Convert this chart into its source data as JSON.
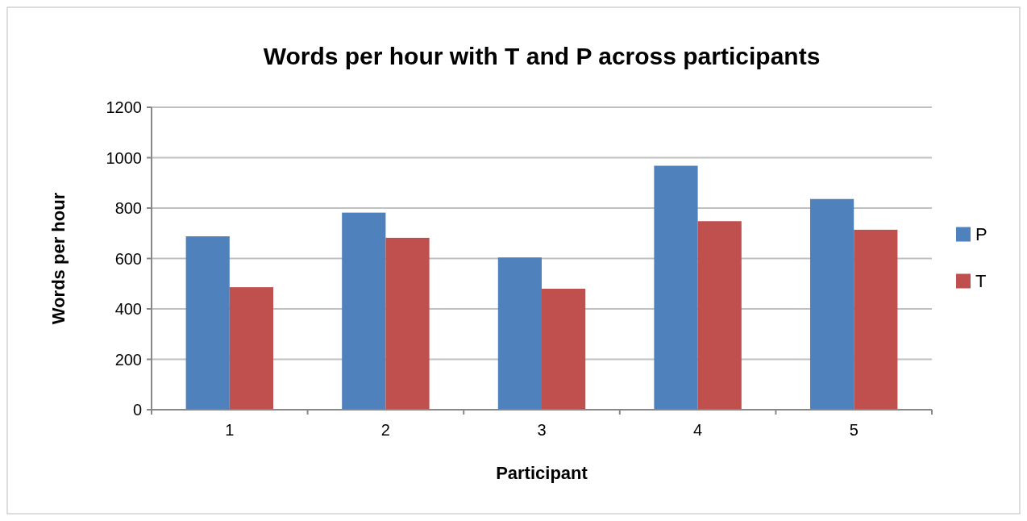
{
  "chart_data": {
    "type": "bar",
    "title": "Words per hour with T and P across participants",
    "xlabel": "Participant",
    "ylabel": "Words per hour",
    "categories": [
      "1",
      "2",
      "3",
      "4",
      "5"
    ],
    "series": [
      {
        "name": "P",
        "color": "#4f81bd",
        "values": [
          688,
          782,
          604,
          968,
          836
        ]
      },
      {
        "name": "T",
        "color": "#c0504d",
        "values": [
          486,
          682,
          480,
          748,
          714
        ]
      }
    ],
    "ylim": [
      0,
      1200
    ],
    "yticks": [
      0,
      200,
      400,
      600,
      800,
      1000,
      1200
    ],
    "grid": "y",
    "legend": "right"
  }
}
